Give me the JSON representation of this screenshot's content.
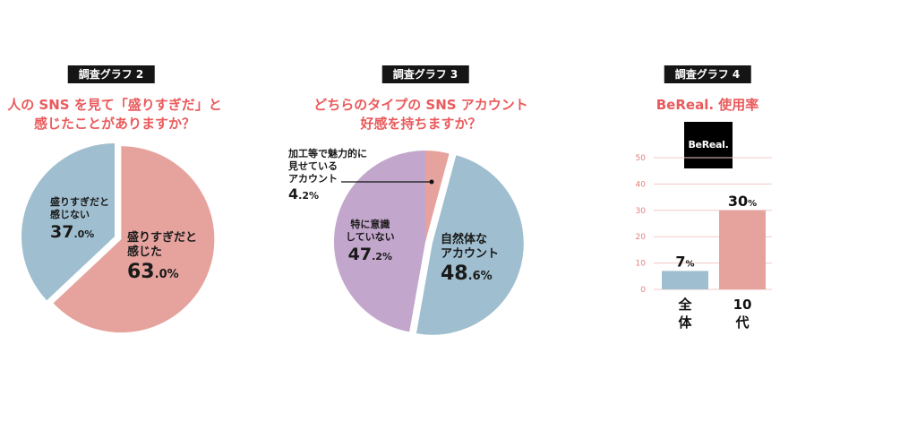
{
  "charts": {
    "chart2": {
      "tag": "調査グラフ 2",
      "question_line1": "人の SNS を見て「盛りすぎだ」と",
      "question_line2": "感じたことがありますか？"
    },
    "chart3": {
      "tag": "調査グラフ 3",
      "question_line1": "どちらのタイプの SNS アカウント",
      "question_line2": "好感を持ちますか？"
    },
    "chart4": {
      "tag": "調査グラフ 4",
      "question_line1": "BeReal. 使用率",
      "logo_text": "BeReal."
    }
  },
  "chart_data": [
    {
      "type": "pie",
      "title": "人の SNS を見て「盛りすぎだ」と感じたことがありますか？",
      "slices": [
        {
          "label_line1": "盛りすぎだと",
          "label_line2": "感じた",
          "value": 63.0,
          "value_int": "63",
          "value_dec": ".0%",
          "color": "#e6a39e"
        },
        {
          "label_line1": "盛りすぎだと",
          "label_line2": "感じない",
          "value": 37.0,
          "value_int": "37",
          "value_dec": ".0%",
          "color": "#9fbecf"
        }
      ]
    },
    {
      "type": "pie",
      "title": "どちらのタイプの SNS アカウント好感を持ちますか？",
      "slices": [
        {
          "label_line1": "加工等で魅力的に",
          "label_line2": "見せている",
          "label_line3": "アカウント",
          "value": 4.2,
          "value_int": "4",
          "value_dec": ".2%",
          "color": "#e6a39e"
        },
        {
          "label_line1": "自然体な",
          "label_line2": "アカウント",
          "value": 48.6,
          "value_int": "48",
          "value_dec": ".6%",
          "color": "#9fbecf"
        },
        {
          "label_line1": "特に意識",
          "label_line2": "していない",
          "value": 47.2,
          "value_int": "47",
          "value_dec": ".2%",
          "color": "#c2a6cb"
        }
      ]
    },
    {
      "type": "bar",
      "title": "BeReal. 使用率",
      "categories": [
        "全体",
        "10代"
      ],
      "category_lines": [
        [
          "全",
          "体"
        ],
        [
          "10",
          "代"
        ]
      ],
      "values": [
        7,
        30
      ],
      "value_labels": [
        {
          "num": "7",
          "unit": "%"
        },
        {
          "num": "30",
          "unit": "%"
        }
      ],
      "colors": [
        "#9fbecf",
        "#e6a39e"
      ],
      "ylim": [
        0,
        50
      ],
      "yticks": [
        "0",
        "10",
        "20",
        "30",
        "40",
        "50"
      ],
      "grid": true
    }
  ]
}
